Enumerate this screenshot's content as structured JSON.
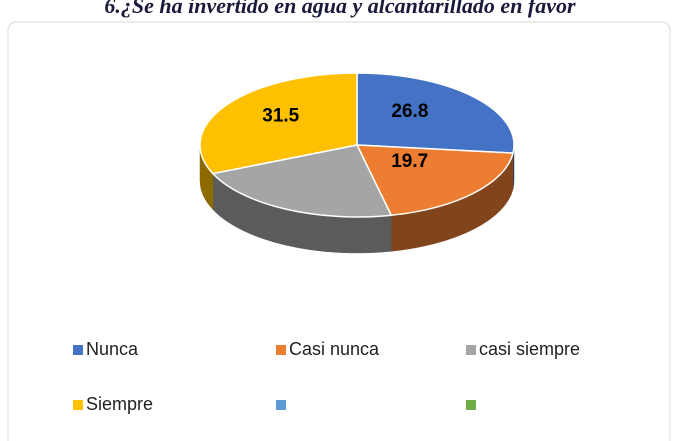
{
  "chart_data": {
    "type": "pie3d",
    "title": "6.¿Se ha invertido en agua y alcantarillado en favor",
    "categories": [
      "Nunca",
      "Casi nunca",
      "casi siempre",
      "Siempre",
      null,
      null
    ],
    "values": [
      26.8,
      19.7,
      22.0,
      31.5,
      null,
      null
    ],
    "value_labels": [
      "26.8",
      "19.7",
      null,
      "31.5",
      null,
      null
    ],
    "colors": [
      "#4472c4",
      "#ed7d31",
      "#a5a5a5",
      "#ffc000",
      "#5b9bd5",
      "#70ad47"
    ],
    "legend": "bottom"
  }
}
